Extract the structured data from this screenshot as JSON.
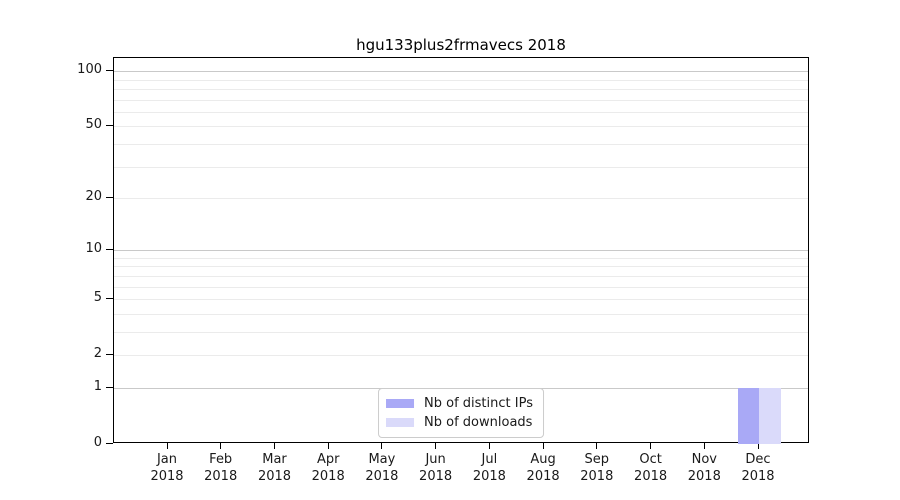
{
  "chart_data": {
    "type": "bar",
    "title": "hgu133plus2frmavecs 2018",
    "categories": [
      "Jan",
      "Feb",
      "Mar",
      "Apr",
      "May",
      "Jun",
      "Jul",
      "Aug",
      "Sep",
      "Oct",
      "Nov",
      "Dec"
    ],
    "x_tick_year": "2018",
    "series": [
      {
        "name": "Nb of distinct IPs",
        "color": "#a9a9f6",
        "values": [
          0,
          0,
          0,
          0,
          0,
          0,
          0,
          0,
          0,
          0,
          0,
          1
        ]
      },
      {
        "name": "Nb of downloads",
        "color": "#dadafa",
        "values": [
          0,
          0,
          0,
          0,
          0,
          0,
          0,
          0,
          0,
          0,
          0,
          1
        ]
      }
    ],
    "y_axis": {
      "scale": "log1p",
      "labeled_ticks": [
        0,
        1,
        2,
        5,
        10,
        20,
        50,
        100
      ],
      "major_gridlines": [
        1,
        10,
        100
      ],
      "minor_gridlines": [
        2,
        3,
        4,
        5,
        6,
        7,
        8,
        9,
        20,
        30,
        40,
        50,
        60,
        70,
        80,
        90
      ],
      "ymax": 117.7,
      "ymin": 0
    },
    "xlabel": "",
    "ylabel": "",
    "grid": true,
    "legend": {
      "position": "lower center",
      "entries": [
        "Nb of distinct IPs",
        "Nb of downloads"
      ]
    }
  },
  "style": {
    "axis_color": "#000000",
    "major_grid_color": "#c9c9c9",
    "minor_grid_color": "#ebebeb",
    "legend_border_color": "#cccccc",
    "background": "#ffffff"
  }
}
